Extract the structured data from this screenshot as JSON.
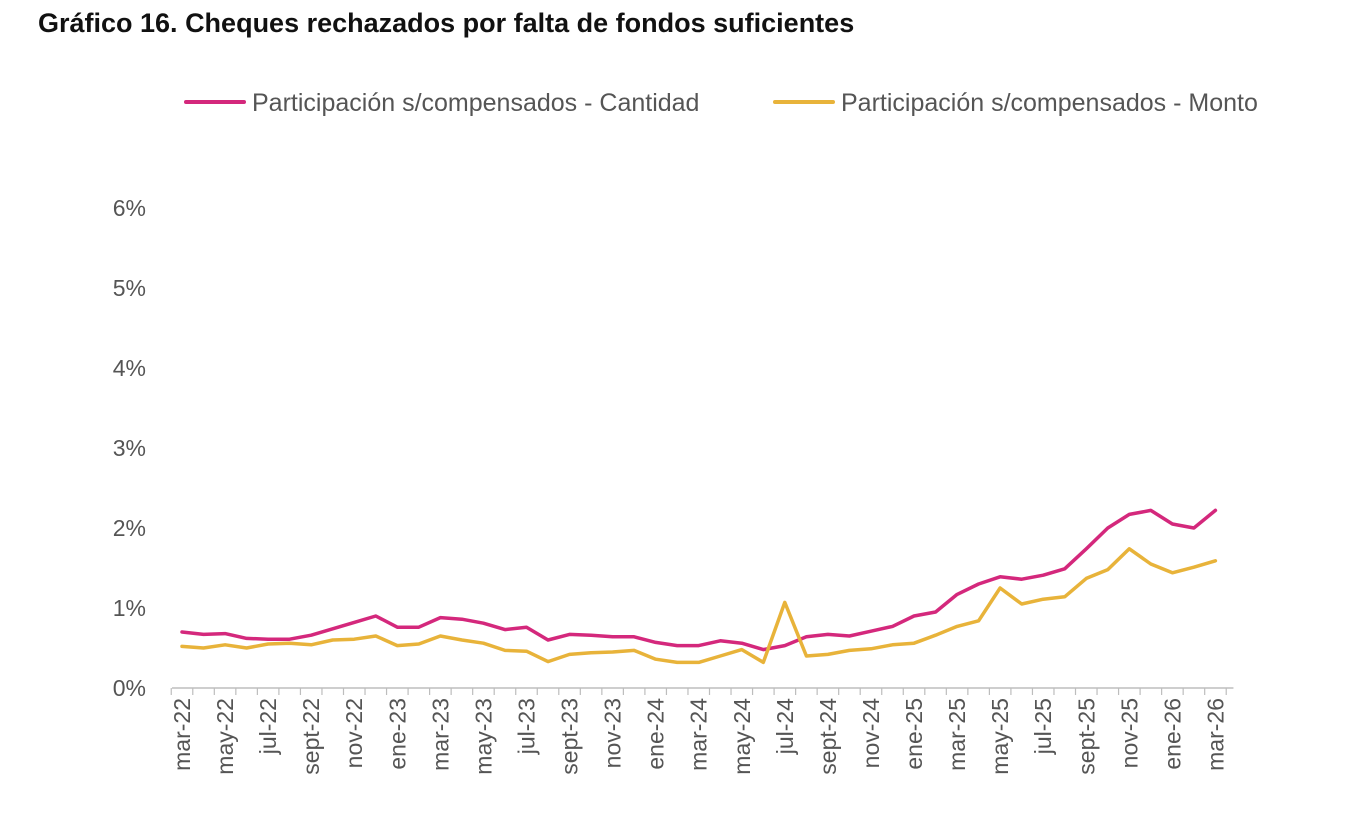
{
  "title": "Gráfico 16. Cheques rechazados por falta de fondos suficientes",
  "chart_data": {
    "type": "line",
    "xlabel": "",
    "ylabel": "",
    "ylim": [
      0,
      6
    ],
    "y_ticks": [
      "0%",
      "1%",
      "2%",
      "3%",
      "4%",
      "5%",
      "6%"
    ],
    "grid": false,
    "legend": "top",
    "x_tick_labels": [
      "mar-22",
      "may-22",
      "jul-22",
      "sept-22",
      "nov-22",
      "ene-23",
      "mar-23",
      "may-23",
      "jul-23",
      "sept-23",
      "nov-23",
      "ene-24",
      "mar-24",
      "may-24",
      "jul-24",
      "sept-24",
      "nov-24",
      "ene-25",
      "mar-25",
      "may-25",
      "jul-25",
      "sept-25",
      "nov-25",
      "ene-26",
      "mar-26"
    ],
    "x_months": 49,
    "series": [
      {
        "name": "Participación s/compensados - Cantidad",
        "color": "#d4287c",
        "values": [
          0.7,
          0.67,
          0.68,
          0.62,
          0.61,
          0.61,
          0.66,
          0.74,
          0.82,
          0.9,
          0.76,
          0.76,
          0.88,
          0.86,
          0.81,
          0.73,
          0.76,
          0.6,
          0.67,
          0.66,
          0.64,
          0.64,
          0.57,
          0.53,
          0.53,
          0.59,
          0.56,
          0.48,
          0.53,
          0.64,
          0.67,
          0.65,
          0.71,
          0.77,
          0.9,
          0.95,
          1.17,
          1.3,
          1.39,
          1.36,
          1.41,
          1.49,
          1.74,
          2.0,
          2.17,
          2.22,
          2.05,
          2.0,
          2.22
        ]
      },
      {
        "name": "Participación s/compensados - Monto",
        "color": "#e8b33a",
        "values": [
          0.52,
          0.5,
          0.54,
          0.5,
          0.55,
          0.56,
          0.54,
          0.6,
          0.61,
          0.65,
          0.53,
          0.55,
          0.65,
          0.6,
          0.56,
          0.47,
          0.46,
          0.33,
          0.42,
          0.44,
          0.45,
          0.47,
          0.36,
          0.32,
          0.32,
          0.4,
          0.48,
          0.32,
          1.07,
          0.4,
          0.42,
          0.47,
          0.49,
          0.54,
          0.56,
          0.66,
          0.77,
          0.84,
          1.25,
          1.05,
          1.11,
          1.14,
          1.37,
          1.48,
          1.74,
          1.55,
          1.44,
          1.51,
          1.59
        ]
      }
    ]
  }
}
